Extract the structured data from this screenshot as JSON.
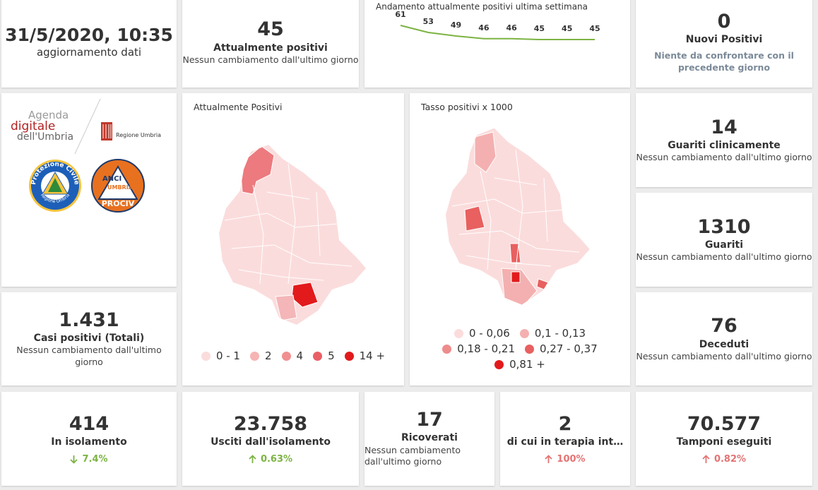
{
  "update": {
    "value": "31/5/2020, 10:35",
    "label": "aggiornamento dati"
  },
  "active": {
    "value": "45",
    "label": "Attualmente positivi",
    "note": "Nessun cambiamento dall'ultimo giorno"
  },
  "trend": {
    "title": "Andamento attualmente positivi ultima settimana",
    "values": [
      61,
      53,
      49,
      46,
      46,
      45,
      45,
      45
    ],
    "color": "#7cb342"
  },
  "new_positives": {
    "value": "0",
    "label": "Nuovi Positivi",
    "note": "Niente da confrontare con il precedente giorno"
  },
  "logos": {
    "agenda": [
      "Agenda",
      "digitale",
      "dell'Umbria"
    ],
    "region": "Regione Umbria",
    "protezione": "Protezione Civile",
    "protezione_sub": "Regione Umbria",
    "anci": [
      "ANCI",
      "UMBRIA",
      "PROCIV"
    ]
  },
  "map_positives": {
    "title": "Attualmente Positivi",
    "legend": [
      {
        "label": "0 - 1",
        "color": "#fbdcdc"
      },
      {
        "label": "2",
        "color": "#f6b4b4"
      },
      {
        "label": "4",
        "color": "#f09090"
      },
      {
        "label": "5",
        "color": "#e86066"
      },
      {
        "label": "14 +",
        "color": "#e21a1c"
      }
    ]
  },
  "map_rate": {
    "title": "Tasso positivi x 1000",
    "legend": [
      {
        "label": "0 - 0,06",
        "color": "#fbdcdc"
      },
      {
        "label": "0,1 - 0,13",
        "color": "#f4b0b0"
      },
      {
        "label": "0,18 - 0,21",
        "color": "#ee8c8c"
      },
      {
        "label": "0,27 - 0,37",
        "color": "#e86060"
      },
      {
        "label": "0,81 +",
        "color": "#e21a1c"
      }
    ]
  },
  "total": {
    "value": "1.431",
    "label": "Casi positivi (Totali)",
    "note": "Nessun cambiamento dall'ultimo giorno"
  },
  "healed_clinically": {
    "value": "14",
    "label": "Guariti clinicamente",
    "note": "Nessun cambiamento dall'ultimo giorno"
  },
  "healed": {
    "value": "1310",
    "label": "Guariti",
    "note": "Nessun cambiamento dall'ultimo giorno"
  },
  "deceased": {
    "value": "76",
    "label": "Deceduti",
    "note": "Nessun cambiamento dall'ultimo giorno"
  },
  "isolation": {
    "value": "414",
    "label": "In isolamento",
    "change": "7.4%",
    "direction": "down",
    "color": "#7cb342"
  },
  "out_isolation": {
    "value": "23.758",
    "label": "Usciti dall'isolamento",
    "change": "0.63%",
    "direction": "up",
    "color": "#7cb342"
  },
  "hospitalized": {
    "value": "17",
    "label": "Ricoverati",
    "note": "Nessun cambiamento dall'ultimo giorno"
  },
  "intensive": {
    "value": "2",
    "label": "di cui in terapia int…",
    "change": "100%",
    "direction": "up",
    "color": "#e57373"
  },
  "swabs": {
    "value": "70.577",
    "label": "Tamponi eseguiti",
    "change": "0.82%",
    "direction": "up",
    "color": "#e57373"
  }
}
